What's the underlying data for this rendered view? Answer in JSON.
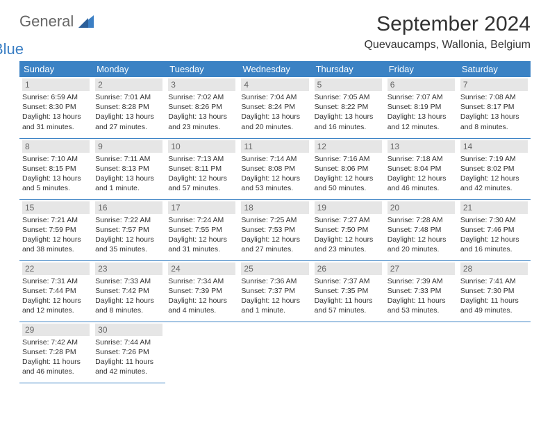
{
  "logo": {
    "general": "General",
    "blue": "Blue"
  },
  "title": {
    "month": "September 2024",
    "location": "Quevaucamps, Wallonia, Belgium"
  },
  "colors": {
    "header_bg": "#3b82c4",
    "header_text": "#ffffff",
    "daynum_bg": "#e6e6e6",
    "daynum_text": "#666666",
    "body_text": "#333333",
    "logo_general": "#666666",
    "logo_blue": "#3b7fc4",
    "border": "#3b82c4",
    "background": "#ffffff"
  },
  "weekdays": [
    "Sunday",
    "Monday",
    "Tuesday",
    "Wednesday",
    "Thursday",
    "Friday",
    "Saturday"
  ],
  "days": [
    {
      "n": "1",
      "sunrise": "6:59 AM",
      "sunset": "8:30 PM",
      "daylight": "13 hours and 31 minutes."
    },
    {
      "n": "2",
      "sunrise": "7:01 AM",
      "sunset": "8:28 PM",
      "daylight": "13 hours and 27 minutes."
    },
    {
      "n": "3",
      "sunrise": "7:02 AM",
      "sunset": "8:26 PM",
      "daylight": "13 hours and 23 minutes."
    },
    {
      "n": "4",
      "sunrise": "7:04 AM",
      "sunset": "8:24 PM",
      "daylight": "13 hours and 20 minutes."
    },
    {
      "n": "5",
      "sunrise": "7:05 AM",
      "sunset": "8:22 PM",
      "daylight": "13 hours and 16 minutes."
    },
    {
      "n": "6",
      "sunrise": "7:07 AM",
      "sunset": "8:19 PM",
      "daylight": "13 hours and 12 minutes."
    },
    {
      "n": "7",
      "sunrise": "7:08 AM",
      "sunset": "8:17 PM",
      "daylight": "13 hours and 8 minutes."
    },
    {
      "n": "8",
      "sunrise": "7:10 AM",
      "sunset": "8:15 PM",
      "daylight": "13 hours and 5 minutes."
    },
    {
      "n": "9",
      "sunrise": "7:11 AM",
      "sunset": "8:13 PM",
      "daylight": "13 hours and 1 minute."
    },
    {
      "n": "10",
      "sunrise": "7:13 AM",
      "sunset": "8:11 PM",
      "daylight": "12 hours and 57 minutes."
    },
    {
      "n": "11",
      "sunrise": "7:14 AM",
      "sunset": "8:08 PM",
      "daylight": "12 hours and 53 minutes."
    },
    {
      "n": "12",
      "sunrise": "7:16 AM",
      "sunset": "8:06 PM",
      "daylight": "12 hours and 50 minutes."
    },
    {
      "n": "13",
      "sunrise": "7:18 AM",
      "sunset": "8:04 PM",
      "daylight": "12 hours and 46 minutes."
    },
    {
      "n": "14",
      "sunrise": "7:19 AM",
      "sunset": "8:02 PM",
      "daylight": "12 hours and 42 minutes."
    },
    {
      "n": "15",
      "sunrise": "7:21 AM",
      "sunset": "7:59 PM",
      "daylight": "12 hours and 38 minutes."
    },
    {
      "n": "16",
      "sunrise": "7:22 AM",
      "sunset": "7:57 PM",
      "daylight": "12 hours and 35 minutes."
    },
    {
      "n": "17",
      "sunrise": "7:24 AM",
      "sunset": "7:55 PM",
      "daylight": "12 hours and 31 minutes."
    },
    {
      "n": "18",
      "sunrise": "7:25 AM",
      "sunset": "7:53 PM",
      "daylight": "12 hours and 27 minutes."
    },
    {
      "n": "19",
      "sunrise": "7:27 AM",
      "sunset": "7:50 PM",
      "daylight": "12 hours and 23 minutes."
    },
    {
      "n": "20",
      "sunrise": "7:28 AM",
      "sunset": "7:48 PM",
      "daylight": "12 hours and 20 minutes."
    },
    {
      "n": "21",
      "sunrise": "7:30 AM",
      "sunset": "7:46 PM",
      "daylight": "12 hours and 16 minutes."
    },
    {
      "n": "22",
      "sunrise": "7:31 AM",
      "sunset": "7:44 PM",
      "daylight": "12 hours and 12 minutes."
    },
    {
      "n": "23",
      "sunrise": "7:33 AM",
      "sunset": "7:42 PM",
      "daylight": "12 hours and 8 minutes."
    },
    {
      "n": "24",
      "sunrise": "7:34 AM",
      "sunset": "7:39 PM",
      "daylight": "12 hours and 4 minutes."
    },
    {
      "n": "25",
      "sunrise": "7:36 AM",
      "sunset": "7:37 PM",
      "daylight": "12 hours and 1 minute."
    },
    {
      "n": "26",
      "sunrise": "7:37 AM",
      "sunset": "7:35 PM",
      "daylight": "11 hours and 57 minutes."
    },
    {
      "n": "27",
      "sunrise": "7:39 AM",
      "sunset": "7:33 PM",
      "daylight": "11 hours and 53 minutes."
    },
    {
      "n": "28",
      "sunrise": "7:41 AM",
      "sunset": "7:30 PM",
      "daylight": "11 hours and 49 minutes."
    },
    {
      "n": "29",
      "sunrise": "7:42 AM",
      "sunset": "7:28 PM",
      "daylight": "11 hours and 46 minutes."
    },
    {
      "n": "30",
      "sunrise": "7:44 AM",
      "sunset": "7:26 PM",
      "daylight": "11 hours and 42 minutes."
    }
  ],
  "labels": {
    "sunrise": "Sunrise:",
    "sunset": "Sunset:",
    "daylight": "Daylight:"
  },
  "layout": {
    "start_weekday": 0,
    "cols": 7,
    "font_family": "Arial",
    "title_fontsize": 30,
    "location_fontsize": 16,
    "weekday_fontsize": 13,
    "info_fontsize": 10.5
  }
}
